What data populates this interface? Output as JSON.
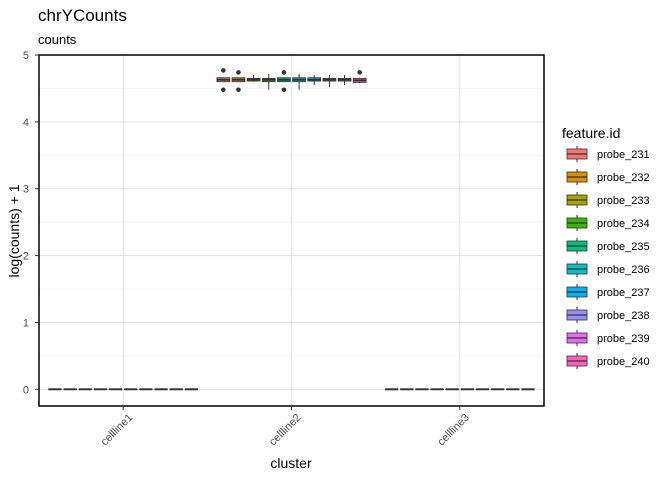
{
  "chart_data": {
    "type": "box",
    "title": "chrYCounts",
    "subtitle": "counts",
    "xlabel": "cluster",
    "ylabel": "log(counts) + 1",
    "categories": [
      "cellline1",
      "cellline2",
      "cellline3"
    ],
    "ylim": [
      -0.25,
      5
    ],
    "yticks": [
      0,
      1,
      2,
      3,
      4,
      5
    ],
    "grid": true,
    "legend": {
      "title": "feature.id",
      "position": "right"
    },
    "series": [
      {
        "name": "probe_231",
        "color": "#F8766D",
        "stats": [
          {
            "min": 0,
            "q1": 0,
            "median": 0,
            "q3": 0,
            "max": 0
          },
          {
            "min": 4.6,
            "q1": 4.6,
            "median": 4.63,
            "q3": 4.66,
            "max": 4.66,
            "outliers": [
              4.48,
              4.77
            ]
          },
          {
            "min": 0,
            "q1": 0,
            "median": 0,
            "q3": 0,
            "max": 0
          }
        ]
      },
      {
        "name": "probe_232",
        "color": "#D89000",
        "stats": [
          {
            "min": 0,
            "q1": 0,
            "median": 0,
            "q3": 0,
            "max": 0
          },
          {
            "min": 4.6,
            "q1": 4.6,
            "median": 4.63,
            "q3": 4.66,
            "max": 4.66,
            "outliers": [
              4.48,
              4.74
            ]
          },
          {
            "min": 0,
            "q1": 0,
            "median": 0,
            "q3": 0,
            "max": 0
          }
        ]
      },
      {
        "name": "probe_233",
        "color": "#A3A500",
        "stats": [
          {
            "min": 0,
            "q1": 0,
            "median": 0,
            "q3": 0,
            "max": 0
          },
          {
            "min": 4.6,
            "q1": 4.61,
            "median": 4.63,
            "q3": 4.65,
            "max": 4.7
          },
          {
            "min": 0,
            "q1": 0,
            "median": 0,
            "q3": 0,
            "max": 0
          }
        ]
      },
      {
        "name": "probe_234",
        "color": "#39B600",
        "stats": [
          {
            "min": 0,
            "q1": 0,
            "median": 0,
            "q3": 0,
            "max": 0
          },
          {
            "min": 4.48,
            "q1": 4.6,
            "median": 4.63,
            "q3": 4.65,
            "max": 4.72
          },
          {
            "min": 0,
            "q1": 0,
            "median": 0,
            "q3": 0,
            "max": 0
          }
        ]
      },
      {
        "name": "probe_235",
        "color": "#00BF7D",
        "stats": [
          {
            "min": 0,
            "q1": 0,
            "median": 0,
            "q3": 0,
            "max": 0
          },
          {
            "min": 4.6,
            "q1": 4.6,
            "median": 4.63,
            "q3": 4.66,
            "max": 4.66,
            "outliers": [
              4.48,
              4.74
            ]
          },
          {
            "min": 0,
            "q1": 0,
            "median": 0,
            "q3": 0,
            "max": 0
          }
        ]
      },
      {
        "name": "probe_236",
        "color": "#00BFC4",
        "stats": [
          {
            "min": 0,
            "q1": 0,
            "median": 0,
            "q3": 0,
            "max": 0
          },
          {
            "min": 4.48,
            "q1": 4.6,
            "median": 4.63,
            "q3": 4.66,
            "max": 4.72
          },
          {
            "min": 0,
            "q1": 0,
            "median": 0,
            "q3": 0,
            "max": 0
          }
        ]
      },
      {
        "name": "probe_237",
        "color": "#00B0F6",
        "stats": [
          {
            "min": 0,
            "q1": 0,
            "median": 0,
            "q3": 0,
            "max": 0
          },
          {
            "min": 4.55,
            "q1": 4.61,
            "median": 4.63,
            "q3": 4.66,
            "max": 4.7
          },
          {
            "min": 0,
            "q1": 0,
            "median": 0,
            "q3": 0,
            "max": 0
          }
        ]
      },
      {
        "name": "probe_238",
        "color": "#9590FF",
        "stats": [
          {
            "min": 0,
            "q1": 0,
            "median": 0,
            "q3": 0,
            "max": 0
          },
          {
            "min": 4.52,
            "q1": 4.61,
            "median": 4.63,
            "q3": 4.65,
            "max": 4.7
          },
          {
            "min": 0,
            "q1": 0,
            "median": 0,
            "q3": 0,
            "max": 0
          }
        ]
      },
      {
        "name": "probe_239",
        "color": "#E76BF3",
        "stats": [
          {
            "min": 0,
            "q1": 0,
            "median": 0,
            "q3": 0,
            "max": 0
          },
          {
            "min": 4.55,
            "q1": 4.61,
            "median": 4.63,
            "q3": 4.65,
            "max": 4.7
          },
          {
            "min": 0,
            "q1": 0,
            "median": 0,
            "q3": 0,
            "max": 0
          }
        ]
      },
      {
        "name": "probe_240",
        "color": "#FF62BC",
        "stats": [
          {
            "min": 0,
            "q1": 0,
            "median": 0,
            "q3": 0,
            "max": 0
          },
          {
            "min": 4.58,
            "q1": 4.59,
            "median": 4.62,
            "q3": 4.65,
            "max": 4.66,
            "outliers": [
              4.74
            ]
          },
          {
            "min": 0,
            "q1": 0,
            "median": 0,
            "q3": 0,
            "max": 0
          }
        ]
      }
    ]
  }
}
